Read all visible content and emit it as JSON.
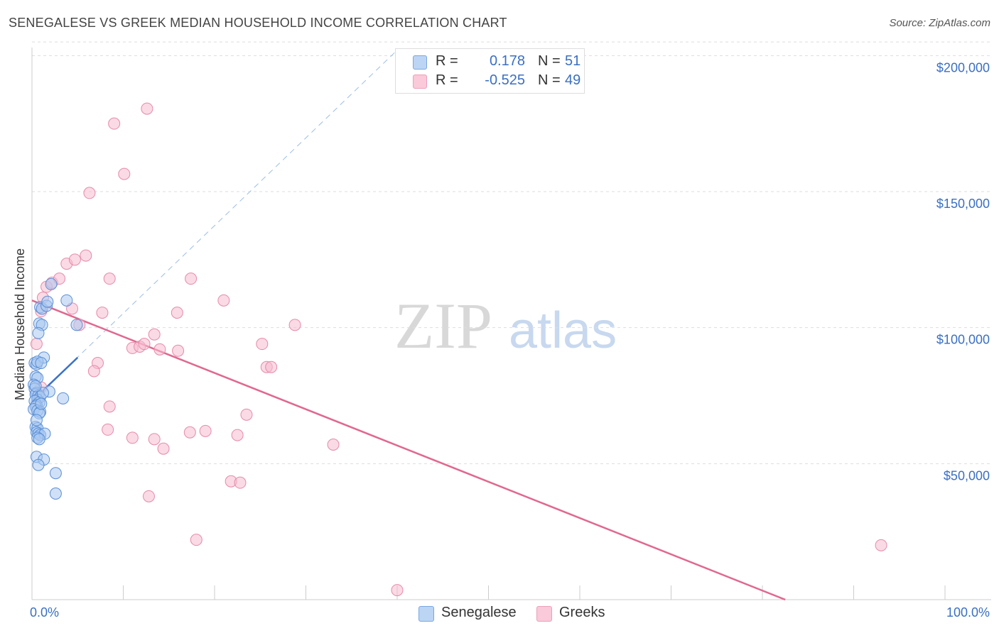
{
  "title": "SENEGALESE VS GREEK MEDIAN HOUSEHOLD INCOME CORRELATION CHART",
  "source": "Source: ZipAtlas.com",
  "watermark": {
    "zip": "ZIP",
    "atlas": "atlas"
  },
  "legend": {
    "rows": [
      {
        "r_label": "R =",
        "r_value": "0.178",
        "n_label": "N =",
        "n_value": "51"
      },
      {
        "r_label": "R =",
        "r_value": "-0.525",
        "n_label": "N =",
        "n_value": "49"
      }
    ]
  },
  "colors": {
    "senegalese_fill": "#a9c8f0",
    "senegalese_stroke": "#5b8fd6",
    "senegalese_line": "#3a72c9",
    "greeks_fill": "#f6bcd0",
    "greeks_stroke": "#e68aa9",
    "greeks_line": "#e0688f",
    "axis_label": "#3a6fc4"
  },
  "chart_data": {
    "type": "scatter",
    "title": "SENEGALESE VS GREEK MEDIAN HOUSEHOLD INCOME CORRELATION CHART",
    "xlabel": "",
    "ylabel": "Median Household Income",
    "xlim": [
      0,
      100
    ],
    "ylim": [
      0,
      210000
    ],
    "x_tick_labels": [
      "0.0%",
      "100.0%"
    ],
    "y_ticks": [
      {
        "value": 50000,
        "label": "$50,000"
      },
      {
        "value": 100000,
        "label": "$100,000"
      },
      {
        "value": 150000,
        "label": "$150,000"
      },
      {
        "value": 200000,
        "label": "$200,000"
      }
    ],
    "grid": true,
    "legend_position": "top-center",
    "series": [
      {
        "name": "Senegalese",
        "r": 0.178,
        "n": 51,
        "points": [
          [
            0.3,
            87000
          ],
          [
            0.5,
            86500
          ],
          [
            0.4,
            82000
          ],
          [
            0.6,
            81500
          ],
          [
            0.2,
            79000
          ],
          [
            0.3,
            77500
          ],
          [
            0.5,
            76000
          ],
          [
            0.4,
            75500
          ],
          [
            0.7,
            75000
          ],
          [
            0.9,
            74500
          ],
          [
            0.6,
            73500
          ],
          [
            0.3,
            73000
          ],
          [
            0.8,
            72500
          ],
          [
            0.5,
            71500
          ],
          [
            0.4,
            71000
          ],
          [
            0.2,
            70000
          ],
          [
            0.6,
            69500
          ],
          [
            0.9,
            69000
          ],
          [
            0.4,
            63500
          ],
          [
            0.6,
            63000
          ],
          [
            0.5,
            61500
          ],
          [
            0.7,
            61000
          ],
          [
            0.9,
            60500
          ],
          [
            1.4,
            61000
          ],
          [
            0.6,
            59500
          ],
          [
            0.8,
            59000
          ],
          [
            0.5,
            52500
          ],
          [
            1.3,
            51500
          ],
          [
            0.7,
            49500
          ],
          [
            2.6,
            46500
          ],
          [
            2.6,
            39000
          ],
          [
            0.9,
            107500
          ],
          [
            1.1,
            107000
          ],
          [
            1.6,
            108000
          ],
          [
            1.7,
            109500
          ],
          [
            2.1,
            116000
          ],
          [
            0.8,
            101500
          ],
          [
            1.1,
            101000
          ],
          [
            0.7,
            98000
          ],
          [
            3.8,
            110000
          ],
          [
            4.9,
            101000
          ],
          [
            1.3,
            89000
          ],
          [
            0.6,
            87500
          ],
          [
            1.0,
            87000
          ],
          [
            1.9,
            76500
          ],
          [
            3.4,
            74000
          ],
          [
            1.2,
            76000
          ],
          [
            0.4,
            78500
          ],
          [
            0.8,
            68500
          ],
          [
            1.0,
            72000
          ],
          [
            0.5,
            66000
          ]
        ],
        "trend": {
          "x": [
            0,
            5
          ],
          "y": [
            73000,
            89000
          ]
        },
        "trend_extended": {
          "x": [
            0,
            40
          ],
          "y": [
            73000,
            202000
          ]
        }
      },
      {
        "name": "Greeks",
        "r": -0.525,
        "n": 49,
        "points": [
          [
            0.5,
            94000
          ],
          [
            1.0,
            106000
          ],
          [
            1.2,
            111000
          ],
          [
            1.6,
            115000
          ],
          [
            2.2,
            116500
          ],
          [
            3.0,
            118000
          ],
          [
            3.8,
            123500
          ],
          [
            4.7,
            125000
          ],
          [
            5.9,
            126500
          ],
          [
            6.3,
            149500
          ],
          [
            9.0,
            175000
          ],
          [
            10.1,
            156500
          ],
          [
            12.6,
            180500
          ],
          [
            8.5,
            118000
          ],
          [
            7.7,
            105500
          ],
          [
            4.4,
            107000
          ],
          [
            5.2,
            101000
          ],
          [
            13.4,
            97500
          ],
          [
            14.0,
            92000
          ],
          [
            11.0,
            92500
          ],
          [
            11.8,
            93000
          ],
          [
            12.3,
            94000
          ],
          [
            7.2,
            87000
          ],
          [
            6.8,
            84000
          ],
          [
            15.9,
            105500
          ],
          [
            17.4,
            118000
          ],
          [
            21.0,
            110000
          ],
          [
            25.2,
            94000
          ],
          [
            25.7,
            85500
          ],
          [
            26.2,
            85500
          ],
          [
            28.8,
            101000
          ],
          [
            16.0,
            91500
          ],
          [
            8.5,
            71000
          ],
          [
            8.3,
            62500
          ],
          [
            11.0,
            59500
          ],
          [
            13.4,
            59000
          ],
          [
            14.4,
            55500
          ],
          [
            17.3,
            61500
          ],
          [
            19.0,
            62000
          ],
          [
            22.5,
            60500
          ],
          [
            23.5,
            68000
          ],
          [
            33.0,
            57000
          ],
          [
            21.8,
            43500
          ],
          [
            22.8,
            43000
          ],
          [
            12.8,
            38000
          ],
          [
            18.0,
            22000
          ],
          [
            40.0,
            3500
          ],
          [
            93.0,
            20000
          ],
          [
            1.0,
            78000
          ]
        ],
        "trend": {
          "x": [
            0,
            82.5
          ],
          "y": [
            110000,
            0
          ]
        }
      }
    ]
  },
  "bottom_legend": [
    {
      "label": "Senegalese"
    },
    {
      "label": "Greeks"
    }
  ]
}
